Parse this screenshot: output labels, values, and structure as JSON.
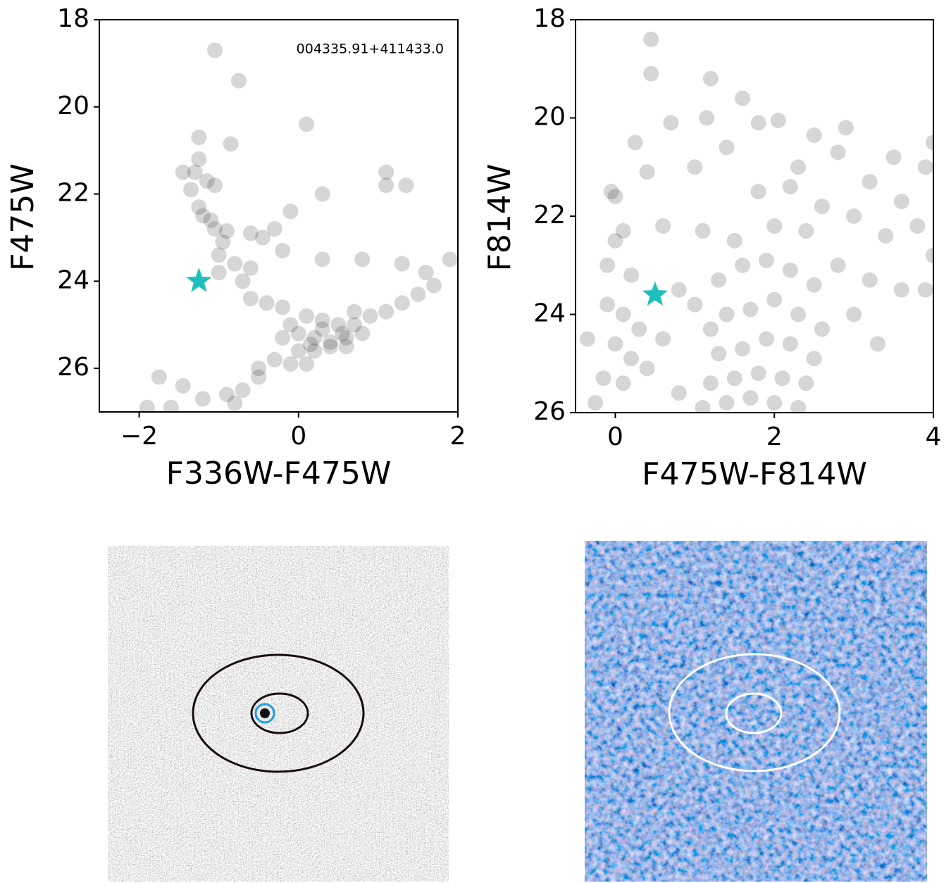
{
  "chart_data": [
    {
      "type": "scatter",
      "xlabel": "F336W-F475W",
      "ylabel": "F475W",
      "annotation": "004335.91+411433.0",
      "xlim": [
        -2.5,
        2
      ],
      "ylim": [
        27,
        18
      ],
      "xticks": [
        {
          "value": -2,
          "label": "−2"
        },
        0,
        2
      ],
      "yticks": [
        18,
        20,
        22,
        24,
        26
      ],
      "series": [
        {
          "color": "#000000",
          "opacity": 0.16,
          "marker": "circle",
          "x": [
            -1.05,
            -0.75,
            0.1,
            -1.25,
            -0.85,
            -1.25,
            -1.45,
            -1.3,
            -1.15,
            -1.05,
            -1.35,
            -0.1,
            -1.25,
            -1.2,
            -1.1,
            -1.05,
            -0.9,
            -0.6,
            -0.45,
            -0.3,
            -0.95,
            -0.2,
            1.1,
            1.35,
            1.1,
            0.3,
            -1.0,
            -0.8,
            -0.6,
            -1.0,
            -0.7,
            0.3,
            0.8,
            1.3,
            1.6,
            1.9,
            -0.6,
            -0.4,
            -0.2,
            0.1,
            0.3,
            0.5,
            0.7,
            0.9,
            1.1,
            1.3,
            1.5,
            1.7,
            0.0,
            0.2,
            0.4,
            0.6,
            0.8,
            -0.2,
            0.0,
            0.2,
            0.4,
            0.6,
            -0.1,
            0.1,
            -0.3,
            -0.5,
            -0.7,
            -0.9,
            -0.8,
            -1.2,
            -1.6,
            -1.75,
            -1.45,
            -1.9,
            -0.5,
            0.3,
            0.55,
            0.7,
            -0.1,
            0.15
          ],
          "y": [
            18.7,
            19.4,
            20.4,
            20.7,
            20.85,
            21.2,
            21.5,
            21.5,
            21.7,
            21.8,
            21.9,
            22.4,
            22.3,
            22.5,
            22.6,
            22.8,
            22.85,
            22.9,
            23.0,
            22.8,
            23.1,
            23.3,
            21.5,
            21.8,
            21.8,
            22.0,
            23.4,
            23.6,
            23.7,
            23.8,
            24.0,
            23.5,
            23.5,
            23.6,
            23.8,
            23.5,
            24.4,
            24.5,
            24.6,
            24.8,
            24.9,
            25.0,
            25.0,
            24.8,
            24.7,
            24.5,
            24.3,
            24.1,
            25.2,
            25.3,
            25.4,
            25.3,
            25.2,
            25.3,
            25.6,
            25.6,
            25.5,
            25.5,
            25.9,
            25.9,
            25.8,
            26.2,
            26.5,
            26.6,
            26.8,
            26.7,
            26.9,
            26.2,
            26.4,
            26.9,
            26.0,
            25.1,
            25.2,
            24.7,
            25.0,
            25.45
          ]
        },
        {
          "color": "#1fbfbf",
          "opacity": 1,
          "marker": "star",
          "x": [
            -1.25
          ],
          "y": [
            24.0
          ]
        }
      ]
    },
    {
      "type": "scatter",
      "xlabel": "F475W-F814W",
      "ylabel": "F814W",
      "xlim": [
        -0.5,
        4
      ],
      "ylim": [
        26,
        18
      ],
      "xticks": [
        0,
        2,
        4
      ],
      "yticks": [
        18,
        20,
        22,
        24,
        26
      ],
      "series": [
        {
          "color": "#000000",
          "opacity": 0.16,
          "marker": "circle",
          "x": [
            0.45,
            0.45,
            1.2,
            1.6,
            2.05,
            0.7,
            1.15,
            1.8,
            0.25,
            2.5,
            2.9,
            -0.05,
            0.0,
            0.4,
            1.0,
            1.4,
            2.3,
            2.8,
            3.5,
            3.9,
            4.0,
            1.8,
            2.2,
            2.6,
            3.2,
            3.6,
            0.0,
            0.1,
            -0.1,
            0.2,
            0.6,
            1.1,
            1.5,
            2.0,
            2.4,
            3.0,
            3.4,
            3.8,
            4.0,
            -0.1,
            0.1,
            0.3,
            0.0,
            0.2,
            -0.15,
            0.1,
            0.4,
            0.6,
            0.8,
            1.0,
            1.3,
            1.6,
            1.9,
            2.2,
            2.5,
            2.8,
            3.2,
            3.6,
            3.9,
            1.2,
            1.4,
            1.7,
            2.0,
            2.3,
            2.6,
            3.0,
            1.3,
            1.6,
            1.9,
            2.2,
            2.5,
            1.2,
            1.5,
            1.8,
            2.1,
            2.4,
            1.4,
            1.7,
            2.0,
            2.3,
            1.1,
            0.8,
            -0.25,
            -0.35,
            3.3
          ],
          "y": [
            18.4,
            19.1,
            19.2,
            19.6,
            20.05,
            20.1,
            20.0,
            20.1,
            20.5,
            20.35,
            20.2,
            21.5,
            21.6,
            21.1,
            21.0,
            20.6,
            21.0,
            20.7,
            20.8,
            21.0,
            20.5,
            21.5,
            21.4,
            21.8,
            21.3,
            21.7,
            22.5,
            22.3,
            23.0,
            23.2,
            22.2,
            22.3,
            22.5,
            22.2,
            22.3,
            22.0,
            22.4,
            22.2,
            22.8,
            23.8,
            24.0,
            24.3,
            24.6,
            24.9,
            25.3,
            25.4,
            25.1,
            24.5,
            23.5,
            23.8,
            23.3,
            23.0,
            22.9,
            23.1,
            23.4,
            23.0,
            23.3,
            23.5,
            23.5,
            24.3,
            24.0,
            23.9,
            23.7,
            24.0,
            24.3,
            24.0,
            24.8,
            24.7,
            24.5,
            24.6,
            24.9,
            25.4,
            25.3,
            25.2,
            25.3,
            25.4,
            25.8,
            25.7,
            25.8,
            25.9,
            25.9,
            25.6,
            25.8,
            24.5,
            24.6
          ]
        },
        {
          "color": "#1fbfbf",
          "opacity": 1,
          "marker": "star",
          "x": [
            0.5
          ],
          "y": [
            23.6
          ]
        }
      ]
    }
  ]
}
